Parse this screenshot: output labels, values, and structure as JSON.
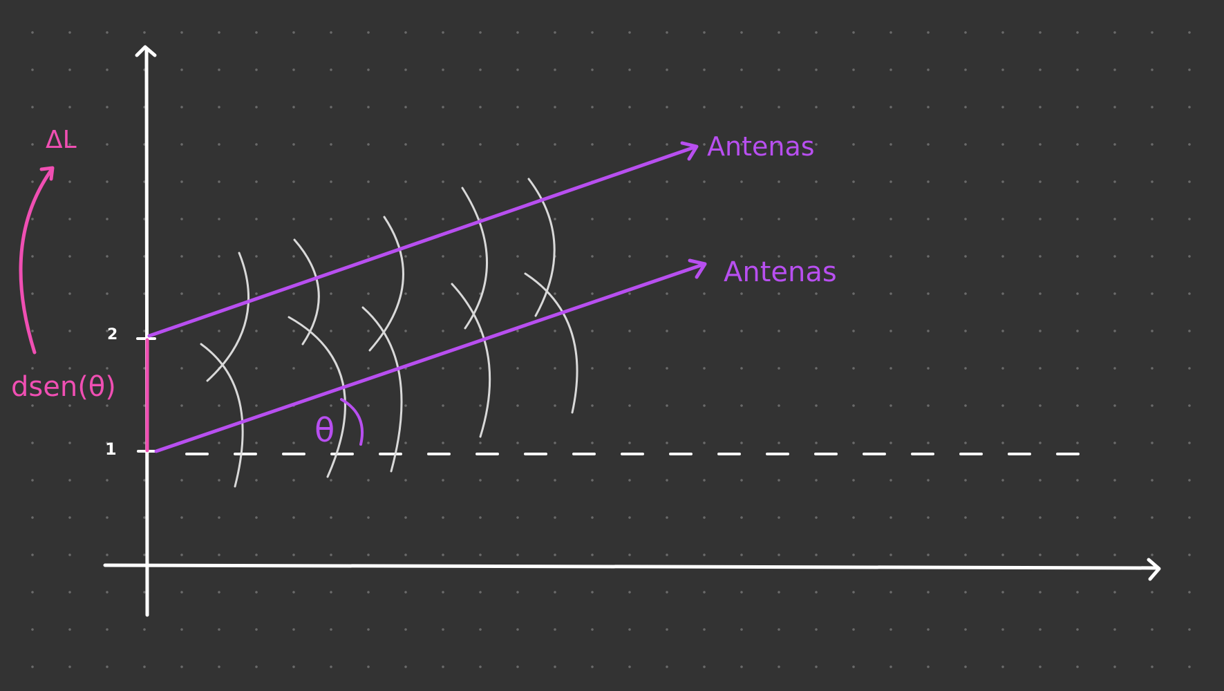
{
  "colors": {
    "background": "#333333",
    "grid_dot": "#6a6a6a",
    "axis": "#ffffff",
    "antenna": "#b84ff0",
    "pink": "#f04fb3",
    "wave": "#d9d9d9"
  },
  "labels": {
    "tick_2": "2",
    "tick_1": "1",
    "delta_l": "ΔL",
    "path_difference": "dsen(θ)",
    "theta": "θ",
    "antenna_upper": "Antenas",
    "antenna_lower": "Antenas"
  }
}
